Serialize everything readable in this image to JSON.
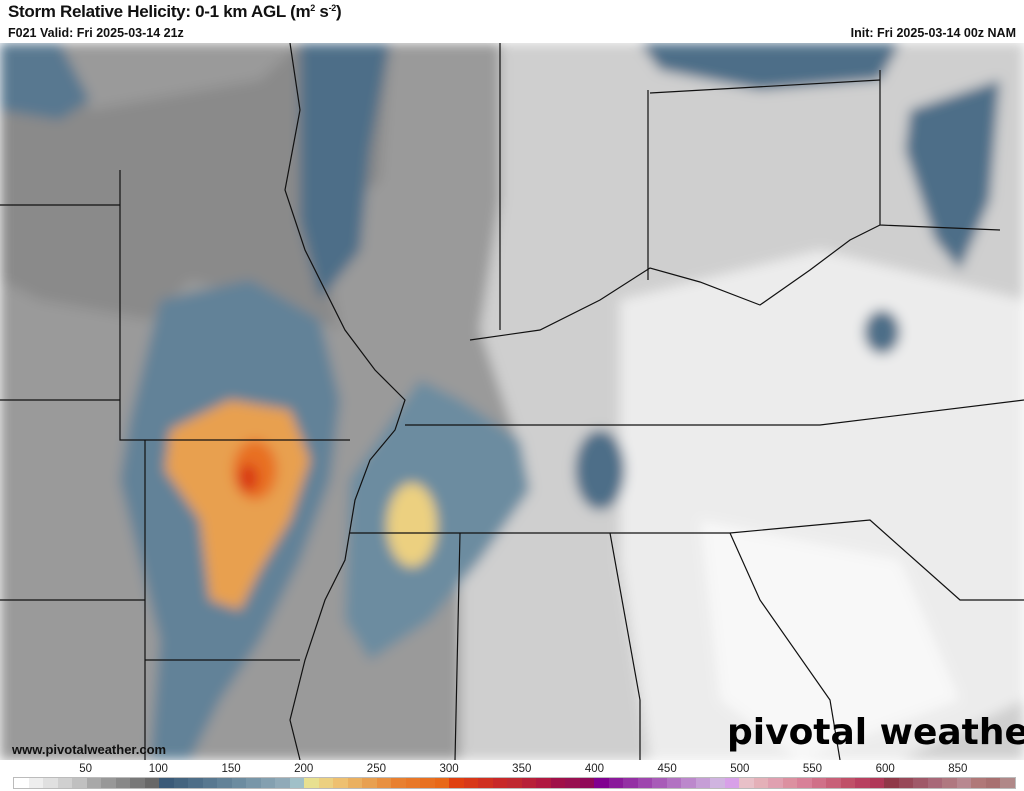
{
  "header": {
    "title": "Storm Relative Helicity: 0-1 km AGL (m",
    "title_sup1": "2",
    "title_mid": " s",
    "title_sup2": "-2",
    "title_end": ")",
    "valid": "F021 Valid: Fri 2025-03-14 21z",
    "init": "Init: Fri 2025-03-14 00z NAM"
  },
  "footer": {
    "watermark": "www.pivotalweather.com",
    "logo": "pivotal weather"
  },
  "colorbar": {
    "labels": [
      "50",
      "100",
      "150",
      "200",
      "250",
      "300",
      "350",
      "400",
      "450",
      "500",
      "550",
      "600",
      "850"
    ],
    "colors": [
      "#ffffff",
      "#eeeeee",
      "#e0e0e0",
      "#d0d0d0",
      "#c0c0c0",
      "#a8a8a8",
      "#989898",
      "#888888",
      "#787878",
      "#686868",
      "#3a5a78",
      "#44647f",
      "#4e6e88",
      "#587890",
      "#628298",
      "#6c8ca0",
      "#7896a8",
      "#84a0b0",
      "#90aab8",
      "#a0c0c8",
      "#e8e090",
      "#ecd080",
      "#eec070",
      "#eab060",
      "#e8a050",
      "#e89040",
      "#e88030",
      "#e87828",
      "#e87020",
      "#e86818",
      "#e04010",
      "#d83818",
      "#d03020",
      "#c82828",
      "#c02830",
      "#b82038",
      "#b01840",
      "#a01048",
      "#981050",
      "#900858",
      "#800090",
      "#8a1a9a",
      "#9430a4",
      "#9e46ae",
      "#a85cb8",
      "#b272c2",
      "#bc88cc",
      "#c69ed6",
      "#d0b4e0",
      "#d8a0e8",
      "#e8c0c8",
      "#e4b0b8",
      "#e0a0b0",
      "#dc90a0",
      "#d88098",
      "#d07088",
      "#c86078",
      "#c05068",
      "#b84060",
      "#b03858",
      "#903848",
      "#984858",
      "#a05868",
      "#a86878",
      "#b07880",
      "#b88890",
      "#b07878",
      "#a87070",
      "#b08888"
    ]
  }
}
